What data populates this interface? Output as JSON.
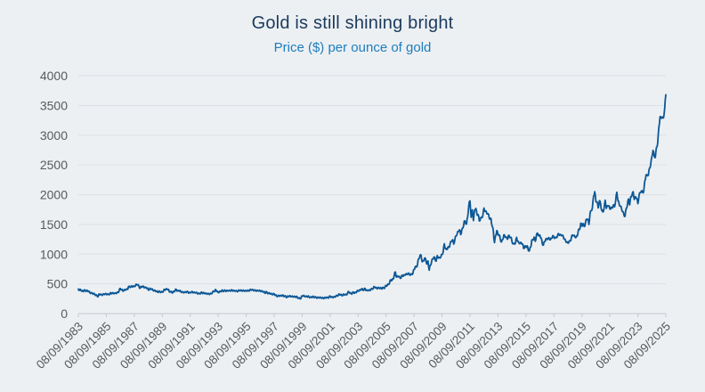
{
  "title": "Gold is still shining bright",
  "subtitle": "Price ($) per ounce of gold",
  "colors": {
    "background": "#ecf0f3",
    "title_text": "#1b3a5c",
    "subtitle_text": "#1e7dbe",
    "line": "#0d5795",
    "gridline": "#dde1e5",
    "axis": "#c4c9ce",
    "tick_label": "#595959"
  },
  "chart_data": {
    "type": "line",
    "title": "Gold is still shining bright",
    "subtitle": "Price ($) per ounce of gold",
    "series_name": "Gold price ($ per ounce)",
    "ylim": [
      0,
      4000
    ],
    "y_ticks": [
      0,
      500,
      1000,
      1500,
      2000,
      2500,
      3000,
      3500,
      4000
    ],
    "x_tick_labels": [
      "08/09/1983",
      "08/09/1985",
      "08/09/1987",
      "08/09/1989",
      "08/09/1991",
      "08/09/1993",
      "08/09/1995",
      "08/09/1997",
      "08/09/1999",
      "08/09/2001",
      "08/09/2003",
      "08/09/2005",
      "08/09/2007",
      "08/09/2009",
      "08/09/2011",
      "08/09/2013",
      "08/09/2015",
      "08/09/2017",
      "08/09/2019",
      "08/09/2021",
      "08/09/2023",
      "08/09/2025"
    ],
    "x_start": "09/1983",
    "x_end": "09/2025",
    "frequency": "monthly",
    "x_tick_every_n_points": 24,
    "grid": "horizontal-only",
    "legend": "none",
    "monthly_values": {
      "1983": [
        412,
        393,
        405,
        381
      ],
      "1984": [
        373,
        394,
        388,
        377,
        387,
        373,
        347,
        348,
        341,
        333,
        329,
        309
      ],
      "1985": [
        302,
        287,
        329,
        321,
        314,
        317,
        327,
        333,
        326,
        325,
        325,
        327
      ],
      "1986": [
        350,
        338,
        344,
        340,
        343,
        346,
        357,
        385,
        423,
        404,
        383,
        391
      ],
      "1987": [
        400,
        405,
        408,
        453,
        451,
        447,
        462,
        453,
        460,
        468,
        492,
        486
      ],
      "1988": [
        458,
        426,
        457,
        451,
        455,
        437,
        437,
        431,
        397,
        412,
        420,
        410
      ],
      "1989": [
        394,
        387,
        383,
        378,
        361,
        373,
        368,
        360,
        366,
        375,
        408,
        401
      ],
      "1990": [
        415,
        408,
        369,
        368,
        363,
        352,
        372,
        388,
        408,
        380,
        384,
        386
      ],
      "1991": [
        366,
        363,
        356,
        358,
        361,
        368,
        367,
        347,
        355,
        358,
        366,
        353
      ],
      "1992": [
        354,
        354,
        344,
        337,
        337,
        343,
        358,
        340,
        349,
        339,
        335,
        333
      ],
      "1993": [
        329,
        329,
        337,
        354,
        375,
        378,
        403,
        371,
        355,
        369,
        370,
        391
      ],
      "1994": [
        378,
        382,
        390,
        377,
        387,
        386,
        385,
        386,
        395,
        384,
        384,
        383
      ],
      "1995": [
        375,
        376,
        392,
        390,
        385,
        387,
        383,
        383,
        384,
        383,
        387,
        387
      ],
      "1996": [
        405,
        400,
        396,
        391,
        391,
        382,
        386,
        387,
        379,
        379,
        371,
        369
      ],
      "1997": [
        345,
        364,
        351,
        340,
        345,
        334,
        326,
        324,
        333,
        311,
        297,
        290
      ],
      "1998": [
        304,
        297,
        301,
        308,
        293,
        296,
        286,
        274,
        293,
        292,
        294,
        288
      ],
      "1999": [
        285,
        287,
        280,
        287,
        268,
        261,
        255,
        255,
        299,
        300,
        291,
        290
      ],
      "2000": [
        283,
        294,
        276,
        275,
        272,
        289,
        276,
        277,
        274,
        265,
        269,
        272
      ],
      "2001": [
        265,
        266,
        258,
        264,
        267,
        271,
        266,
        274,
        293,
        278,
        275,
        277
      ],
      "2002": [
        282,
        296,
        301,
        308,
        327,
        319,
        304,
        313,
        323,
        317,
        318,
        348
      ],
      "2003": [
        368,
        347,
        334,
        340,
        361,
        346,
        355,
        376,
        385,
        385,
        398,
        416
      ],
      "2004": [
        400,
        396,
        424,
        388,
        393,
        393,
        391,
        410,
        415,
        425,
        453,
        438
      ],
      "2005": [
        422,
        435,
        428,
        435,
        417,
        437,
        429,
        437,
        473,
        470,
        495,
        513
      ],
      "2006": [
        569,
        556,
        582,
        644,
        700,
        613,
        632,
        623,
        599,
        604,
        647,
        632
      ],
      "2007": [
        651,
        665,
        661,
        677,
        659,
        650,
        665,
        672,
        743,
        789,
        783,
        834
      ],
      "2008": [
        923,
        971,
        985,
        871,
        885,
        930,
        918,
        833,
        884,
        730,
        814,
        869
      ],
      "2009": [
        919,
        952,
        916,
        883,
        975,
        934,
        939,
        955,
        995,
        1040,
        1175,
        1087
      ],
      "2010": [
        1078,
        1118,
        1113,
        1179,
        1215,
        1244,
        1169,
        1246,
        1307,
        1346,
        1385,
        1410
      ],
      "2011": [
        1327,
        1411,
        1439,
        1556,
        1536,
        1505,
        1628,
        1826,
        1895,
        1620,
        1746,
        1564
      ],
      "2012": [
        1744,
        1770,
        1662,
        1664,
        1558,
        1598,
        1615,
        1648,
        1776,
        1719,
        1715,
        1676
      ],
      "2013": [
        1664,
        1588,
        1598,
        1469,
        1394,
        1192,
        1313,
        1396,
        1327,
        1324,
        1253,
        1205
      ],
      "2014": [
        1244,
        1326,
        1291,
        1288,
        1250,
        1315,
        1285,
        1285,
        1216,
        1173,
        1175,
        1184
      ],
      "2015": [
        1283,
        1213,
        1187,
        1184,
        1191,
        1171,
        1095,
        1135,
        1114,
        1142,
        1061,
        1060
      ],
      "2016": [
        1116,
        1234,
        1237,
        1285,
        1215,
        1320,
        1351,
        1309,
        1317,
        1272,
        1178,
        1152
      ],
      "2017": [
        1212,
        1255,
        1249,
        1266,
        1269,
        1242,
        1267,
        1311,
        1280,
        1271,
        1280,
        1303
      ],
      "2018": [
        1345,
        1318,
        1325,
        1315,
        1298,
        1253,
        1224,
        1201,
        1187,
        1215,
        1220,
        1282
      ],
      "2019": [
        1321,
        1313,
        1292,
        1283,
        1306,
        1409,
        1414,
        1520,
        1472,
        1513,
        1464,
        1517
      ],
      "2020": [
        1589,
        1586,
        1498,
        1687,
        1730,
        1781,
        1976,
        2050,
        1886,
        1879,
        1777,
        1898
      ],
      "2021": [
        1848,
        1734,
        1708,
        1769,
        1907,
        1770,
        1814,
        1814,
        1757,
        1783,
        1775,
        1829
      ],
      "2022": [
        1797,
        1909,
        2040,
        1897,
        1837,
        1807,
        1766,
        1716,
        1661,
        1634,
        1769,
        1824
      ],
      "2023": [
        1928,
        1827,
        1969,
        1990,
        2050,
        1919,
        1965,
        1940,
        1849,
        1984,
        2036,
        2063
      ],
      "2024": [
        2040,
        2044,
        2230,
        2330,
        2327,
        2327,
        2448,
        2503,
        2635,
        2744,
        2651,
        2625
      ],
      "2025": [
        2798,
        2858,
        3124,
        3310,
        3289,
        3303,
        3290,
        3448,
        3680
      ]
    }
  }
}
